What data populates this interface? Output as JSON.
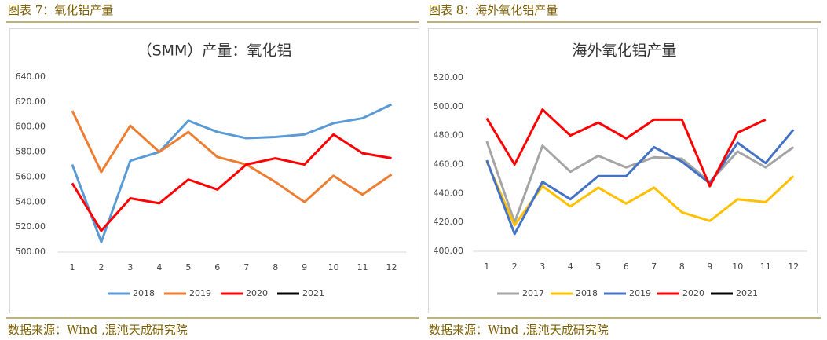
{
  "captions": [
    "图表 7：氧化铝产量",
    "图表 8：海外氧化铝产量"
  ],
  "sources": [
    "数据来源：Wind ,混沌天成研究院",
    "数据来源：Wind ,混沌天成研究院"
  ],
  "chart_data": [
    {
      "type": "line",
      "title": "（SMM）产量：氧化铝",
      "categories": [
        "1",
        "2",
        "3",
        "4",
        "5",
        "6",
        "7",
        "8",
        "9",
        "10",
        "11",
        "12"
      ],
      "ylim": [
        500,
        640
      ],
      "yticks": [
        {
          "value": 500,
          "label": "500.00"
        },
        {
          "value": 520,
          "label": "520.00"
        },
        {
          "value": 540,
          "label": "540.00"
        },
        {
          "value": 560,
          "label": "560.00"
        },
        {
          "value": 580,
          "label": "580.00"
        },
        {
          "value": 600,
          "label": "600.00"
        },
        {
          "value": 620,
          "label": "620.00"
        },
        {
          "value": 640,
          "label": "640.00"
        }
      ],
      "grid": false,
      "legend": "bottom",
      "series": [
        {
          "name": "2018",
          "color": "#5b9bd5",
          "values": [
            570,
            508,
            573,
            580,
            605,
            596,
            591,
            592,
            594,
            603,
            607,
            618
          ]
        },
        {
          "name": "2019",
          "color": "#ed7d31",
          "values": [
            613,
            564,
            601,
            580,
            596,
            576,
            570,
            556,
            540,
            561,
            546,
            562
          ]
        },
        {
          "name": "2020",
          "color": "#ff0000",
          "values": [
            555,
            517,
            543,
            539,
            558,
            550,
            570,
            575,
            570,
            594,
            579,
            575
          ]
        },
        {
          "name": "2021",
          "color": "#000000",
          "values": [
            null,
            null,
            null,
            null,
            null,
            null,
            null,
            null,
            null,
            null,
            null,
            null
          ]
        }
      ]
    },
    {
      "type": "line",
      "title": "海外氧化铝产量",
      "categories": [
        "1",
        "2",
        "3",
        "4",
        "5",
        "6",
        "7",
        "8",
        "9",
        "10",
        "11",
        "12"
      ],
      "ylim": [
        400,
        520
      ],
      "yticks": [
        {
          "value": 400,
          "label": "400.00"
        },
        {
          "value": 420,
          "label": "420.00"
        },
        {
          "value": 440,
          "label": "440.00"
        },
        {
          "value": 460,
          "label": "460.00"
        },
        {
          "value": 480,
          "label": "480.00"
        },
        {
          "value": 500,
          "label": "500.00"
        },
        {
          "value": 520,
          "label": "520.00"
        }
      ],
      "grid": false,
      "legend": "bottom",
      "series": [
        {
          "name": "2017",
          "color": "#a5a5a5",
          "values": [
            476,
            420,
            473,
            455,
            466,
            458,
            465,
            464,
            448,
            469,
            458,
            472
          ]
        },
        {
          "name": "2018",
          "color": "#ffc000",
          "values": [
            462,
            418,
            445,
            431,
            444,
            433,
            444,
            427,
            421,
            436,
            434,
            452
          ]
        },
        {
          "name": "2019",
          "color": "#4472c4",
          "values": [
            463,
            412,
            448,
            436,
            452,
            452,
            472,
            462,
            447,
            475,
            461,
            484
          ]
        },
        {
          "name": "2020",
          "color": "#ff0000",
          "values": [
            492,
            460,
            498,
            480,
            489,
            478,
            491,
            491,
            445,
            482,
            491,
            null
          ]
        },
        {
          "name": "2021",
          "color": "#000000",
          "values": [
            null,
            null,
            null,
            null,
            null,
            null,
            null,
            null,
            null,
            null,
            null,
            null
          ]
        }
      ]
    }
  ]
}
